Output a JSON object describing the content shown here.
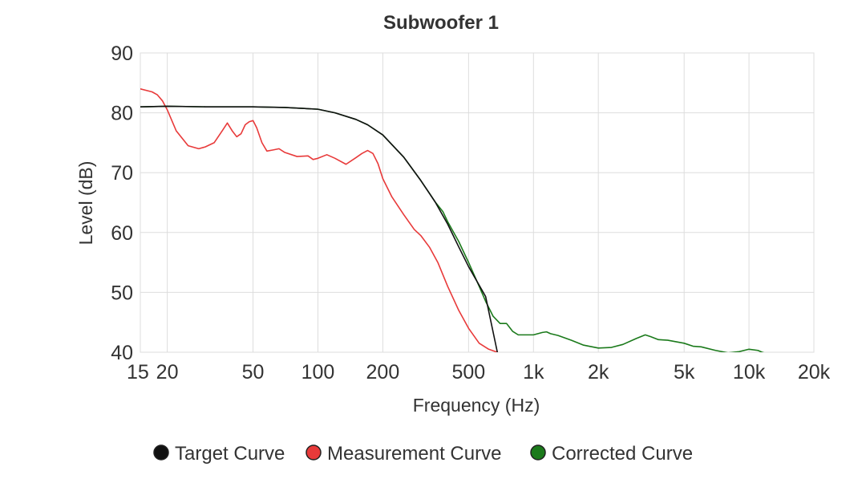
{
  "chart_data": {
    "type": "line",
    "title": "Subwoofer 1",
    "xlabel": "Frequency (Hz)",
    "ylabel": "Level (dB)",
    "xscale": "log",
    "xlim": [
      15,
      20000
    ],
    "ylim": [
      40,
      90
    ],
    "grid": true,
    "legend_position": "bottom",
    "x_ticks": [
      {
        "value": 15,
        "label": "15"
      },
      {
        "value": 20,
        "label": "20"
      },
      {
        "value": 50,
        "label": "50"
      },
      {
        "value": 100,
        "label": "100"
      },
      {
        "value": 200,
        "label": "200"
      },
      {
        "value": 500,
        "label": "500"
      },
      {
        "value": 1000,
        "label": "1k"
      },
      {
        "value": 2000,
        "label": "2k"
      },
      {
        "value": 5000,
        "label": "5k"
      },
      {
        "value": 10000,
        "label": "10k"
      },
      {
        "value": 20000,
        "label": "20k"
      }
    ],
    "y_ticks": [
      {
        "value": 40,
        "label": "40"
      },
      {
        "value": 50,
        "label": "50"
      },
      {
        "value": 60,
        "label": "60"
      },
      {
        "value": 70,
        "label": "70"
      },
      {
        "value": 80,
        "label": "80"
      },
      {
        "value": 90,
        "label": "90"
      }
    ],
    "series": [
      {
        "name": "Target Curve",
        "color": "#111111",
        "x": [
          15,
          20,
          30,
          50,
          70,
          100,
          120,
          150,
          170,
          200,
          250,
          300,
          350,
          400,
          450,
          500,
          600,
          680
        ],
        "y": [
          81,
          81.1,
          81,
          81,
          80.9,
          80.6,
          80,
          78.9,
          78,
          76.3,
          72.6,
          68.7,
          65.1,
          61.4,
          57.6,
          54.3,
          49.3,
          40
        ]
      },
      {
        "name": "Measurement Curve",
        "color": "#e83a3a",
        "x": [
          15,
          17,
          18,
          19,
          20,
          22,
          25,
          28,
          30,
          33,
          36,
          38,
          40,
          42,
          44,
          46,
          48,
          50,
          52,
          55,
          58,
          62,
          66,
          70,
          80,
          90,
          95,
          100,
          110,
          120,
          135,
          150,
          160,
          170,
          180,
          190,
          200,
          220,
          250,
          280,
          300,
          330,
          360,
          400,
          450,
          500,
          560,
          620,
          680
        ],
        "y": [
          84,
          83.5,
          83,
          82,
          80.5,
          77,
          74.5,
          74,
          74.3,
          75,
          77,
          78.3,
          77,
          76,
          76.5,
          78,
          78.5,
          78.7,
          77.5,
          75,
          73.6,
          73.8,
          74,
          73.4,
          72.7,
          72.8,
          72.2,
          72.4,
          73,
          72.4,
          71.4,
          72.5,
          73.2,
          73.7,
          73.2,
          71.5,
          69,
          66,
          63,
          60.5,
          59.5,
          57.5,
          55,
          51,
          47,
          44,
          41.5,
          40.5,
          40
        ]
      },
      {
        "name": "Corrected Curve",
        "color": "#1b7a1b",
        "x": [
          15,
          20,
          30,
          50,
          70,
          100,
          120,
          150,
          170,
          200,
          250,
          300,
          330,
          350,
          380,
          400,
          450,
          500,
          560,
          600,
          650,
          700,
          750,
          800,
          850,
          900,
          1000,
          1100,
          1150,
          1200,
          1300,
          1500,
          1700,
          2000,
          2300,
          2600,
          3000,
          3300,
          3500,
          3800,
          4200,
          5000,
          5500,
          6000,
          7000,
          8000,
          9000,
          10000,
          11000,
          11500,
          12000
        ],
        "y": [
          81,
          81.1,
          81,
          81,
          80.9,
          80.6,
          80,
          78.9,
          78,
          76.3,
          72.6,
          68.7,
          66.5,
          65.1,
          63.5,
          61.8,
          58.5,
          55,
          51,
          48.5,
          46,
          44.8,
          44.8,
          43.5,
          42.9,
          42.9,
          42.9,
          43.3,
          43.4,
          43.1,
          42.8,
          42,
          41.2,
          40.7,
          40.8,
          41.3,
          42.3,
          42.9,
          42.6,
          42.1,
          42,
          41.5,
          41,
          40.9,
          40.3,
          39.9,
          40.1,
          40.5,
          40.3,
          40,
          39.8
        ]
      }
    ]
  }
}
